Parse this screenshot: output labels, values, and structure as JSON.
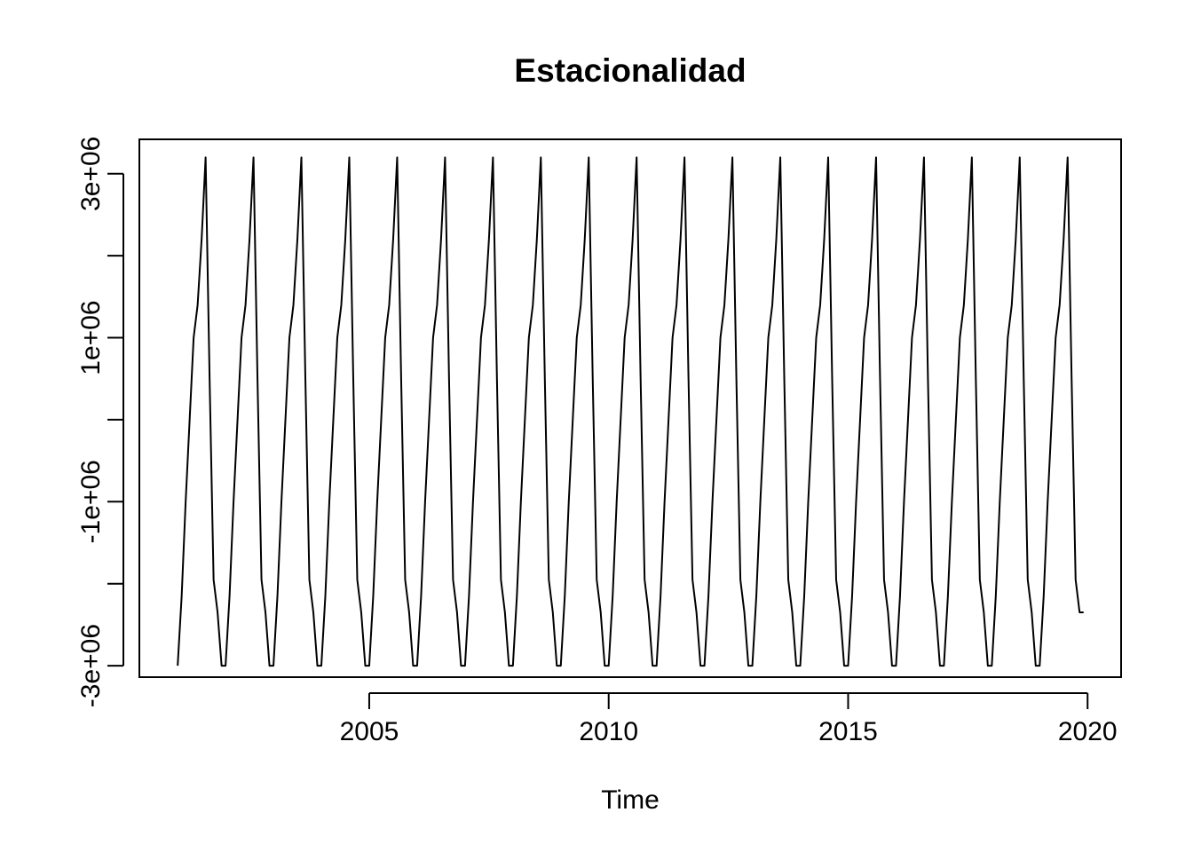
{
  "chart_data": {
    "type": "line",
    "title": "Estacionalidad",
    "xlabel": "Time",
    "ylabel": "",
    "grid": false,
    "legend": "none",
    "xlim": [
      2000.2,
      2020.7
    ],
    "ylim": [
      -3140000,
      3420000
    ],
    "x_ticks": [
      2005,
      2010,
      2015,
      2020
    ],
    "x_tick_labels": [
      "2005",
      "2010",
      "2015",
      "2020"
    ],
    "y_ticks": [
      -3000000,
      -2000000,
      -1000000,
      0,
      1000000,
      2000000,
      3000000
    ],
    "y_tick_labels": [
      {
        "value": -3000000,
        "label": "-3e+06"
      },
      {
        "value": -1000000,
        "label": "-1e+06"
      },
      {
        "value": 1000000,
        "label": "1e+06"
      },
      {
        "value": 3000000,
        "label": "3e+06"
      }
    ],
    "series": [
      {
        "frequency": 12,
        "start_year": 2001,
        "end_year": 2019,
        "color": "#000000",
        "seasonal_pattern": [
          -3000000,
          -2150000,
          -1000000,
          0,
          1000000,
          1400000,
          2200000,
          3200000,
          500000,
          -1950000,
          -2350000,
          -3000000
        ],
        "final_year_months": 12,
        "final_year_pattern": [
          -3000000,
          -2150000,
          -1000000,
          0,
          1000000,
          1400000,
          2200000,
          3200000,
          500000,
          -1950000,
          -2350000,
          -2350000
        ]
      }
    ]
  }
}
